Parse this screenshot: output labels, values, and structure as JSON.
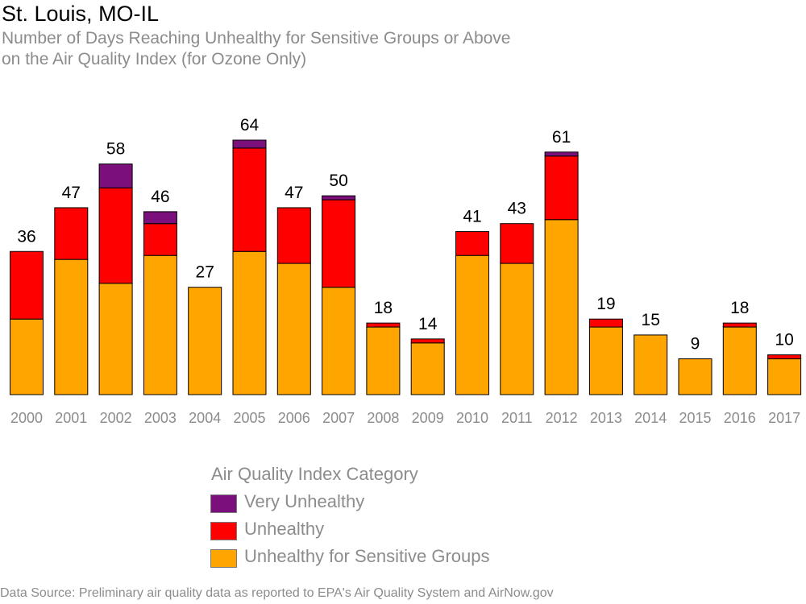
{
  "title": "St. Louis, MO-IL",
  "subtitle_line1": "Number of Days Reaching Unhealthy for Sensitive Groups or Above",
  "subtitle_line2": "on the Air Quality Index (for Ozone Only)",
  "legend": {
    "title": "Air Quality Index Category",
    "items": [
      {
        "label": "Very Unhealthy",
        "color": "#7b0f7b"
      },
      {
        "label": "Unhealthy",
        "color": "#ff0000"
      },
      {
        "label": "Unhealthy for Sensitive Groups",
        "color": "#ffa500"
      }
    ]
  },
  "source": "Data Source: Preliminary air quality data as reported to EPA's Air Quality System and AirNow.gov",
  "chart_data": {
    "type": "bar",
    "stacked": true,
    "categories": [
      "2000",
      "2001",
      "2002",
      "2003",
      "2004",
      "2005",
      "2006",
      "2007",
      "2008",
      "2009",
      "2010",
      "2011",
      "2012",
      "2013",
      "2014",
      "2015",
      "2016",
      "2017"
    ],
    "series": [
      {
        "name": "Unhealthy for Sensitive Groups",
        "color": "#ffa500",
        "values": [
          19,
          34,
          28,
          35,
          27,
          36,
          33,
          27,
          17,
          13,
          35,
          33,
          44,
          17,
          15,
          9,
          17,
          9
        ]
      },
      {
        "name": "Unhealthy",
        "color": "#ff0000",
        "values": [
          17,
          13,
          24,
          8,
          0,
          26,
          14,
          22,
          1,
          1,
          6,
          10,
          16,
          2,
          0,
          0,
          1,
          1
        ]
      },
      {
        "name": "Very Unhealthy",
        "color": "#7b0f7b",
        "values": [
          0,
          0,
          6,
          3,
          0,
          2,
          0,
          1,
          0,
          0,
          0,
          0,
          1,
          0,
          0,
          0,
          0,
          0
        ]
      }
    ],
    "totals": [
      36,
      47,
      58,
      46,
      27,
      64,
      47,
      50,
      18,
      14,
      41,
      43,
      61,
      19,
      15,
      9,
      18,
      10
    ],
    "ylim": [
      0,
      64
    ]
  }
}
